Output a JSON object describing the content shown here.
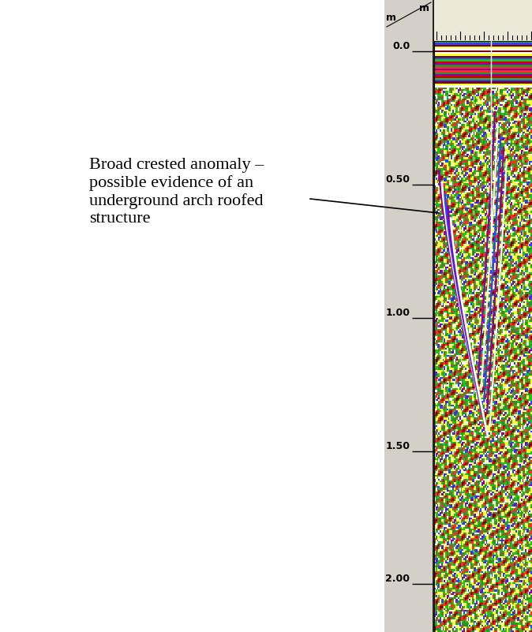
{
  "chart_data": {
    "type": "radargram",
    "annotation": "Broad crested anomaly –\npossible evidence of an\nunderground arch roofed\nstructure",
    "x_unit": "m",
    "y_unit": "m",
    "ylim": [
      2.18,
      -0.04
    ],
    "yticks": [
      {
        "value": 0.0,
        "label": "0.0"
      },
      {
        "value": 0.5,
        "label": "0.50"
      },
      {
        "value": 1.0,
        "label": "1.00"
      },
      {
        "value": 1.5,
        "label": "1.50"
      },
      {
        "value": 2.0,
        "label": "2.00"
      }
    ],
    "tick_labels": "y"
  }
}
